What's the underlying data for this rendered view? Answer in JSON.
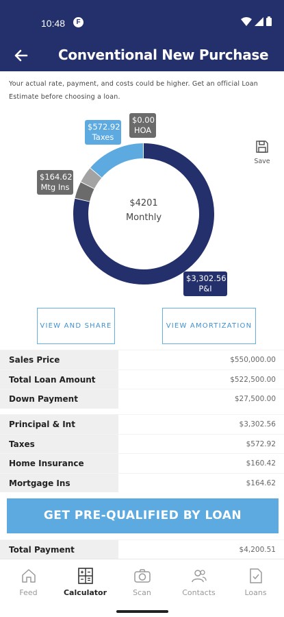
{
  "status_bar": {
    "time": "10:48",
    "app_badge": "F"
  },
  "app_bar": {
    "title": "Conventional New Purchase"
  },
  "disclaimer": "Your actual rate, payment, and costs could be higher. Get an official Loan Estimate before choosing a loan.",
  "chart_data": {
    "type": "pie",
    "center_amount": "$4201",
    "center_label": "Monthly",
    "slices": [
      {
        "name": "P&I",
        "value": 3302.56,
        "label": "$3,302.56",
        "color": "#24306b"
      },
      {
        "name": "Mtg Ins",
        "value": 164.62,
        "label": "$164.62",
        "color": "#6b6b6b"
      },
      {
        "name": "Home Insurance",
        "value": 160.42,
        "label": "",
        "color": "#a3a3a3"
      },
      {
        "name": "Taxes",
        "value": 572.92,
        "label": "$572.92",
        "color": "#5caae0"
      },
      {
        "name": "HOA",
        "value": 0.0,
        "label": "$0.00",
        "color": "#6b6b6b"
      }
    ]
  },
  "callouts": {
    "taxes": {
      "amount": "$572.92",
      "name": "Taxes"
    },
    "hoa": {
      "amount": "$0.00",
      "name": "HOA"
    },
    "mtg_ins": {
      "amount": "$164.62",
      "name": "Mtg Ins"
    },
    "pi": {
      "amount": "$3,302.56",
      "name": "P&I"
    }
  },
  "save_label": "Save",
  "buttons": {
    "view_share": "VIEW AND SHARE",
    "view_amortization": "VIEW AMORTIZATION",
    "prequalify": "GET PRE-QUALIFIED BY LOAN"
  },
  "loan_summary": [
    {
      "label": "Sales Price",
      "value": "$550,000.00"
    },
    {
      "label": "Total Loan Amount",
      "value": "$522,500.00"
    },
    {
      "label": "Down Payment",
      "value": "$27,500.00"
    }
  ],
  "payment_breakdown": [
    {
      "label": "Principal & Int",
      "value": "$3,302.56"
    },
    {
      "label": "Taxes",
      "value": "$572.92"
    },
    {
      "label": "Home Insurance",
      "value": "$160.42"
    },
    {
      "label": "Mortgage Ins",
      "value": "$164.62"
    }
  ],
  "total_payment": {
    "label": "Total Payment",
    "value": "$4,200.51"
  },
  "bottom_nav": [
    {
      "label": "Feed",
      "icon": "home-icon"
    },
    {
      "label": "Calculator",
      "icon": "calculator-icon"
    },
    {
      "label": "Scan",
      "icon": "camera-icon"
    },
    {
      "label": "Contacts",
      "icon": "contacts-icon"
    },
    {
      "label": "Loans",
      "icon": "document-check-icon"
    }
  ]
}
